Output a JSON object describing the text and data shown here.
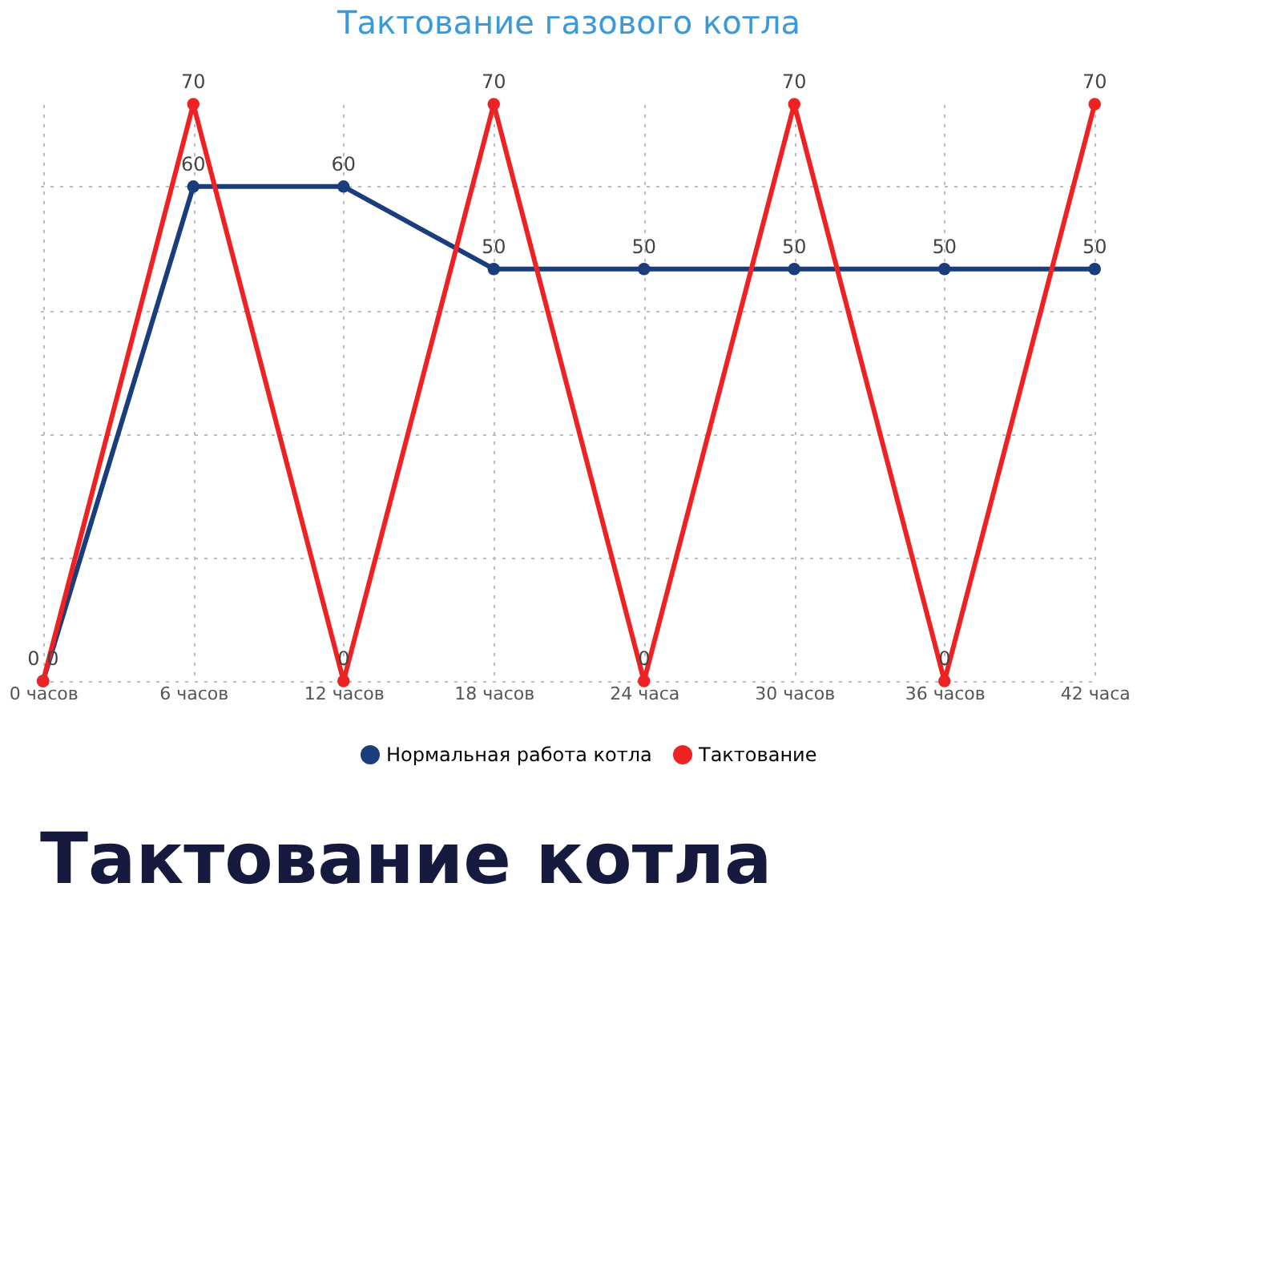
{
  "chart_data": {
    "type": "line",
    "title": "Тактование газового котла",
    "categories": [
      "0 часов",
      "6 часов",
      "12 часов",
      "18 часов",
      "24 часа",
      "30 часов",
      "36 часов",
      "42 часа"
    ],
    "series": [
      {
        "name": "Нормальная работа котла",
        "color": "#1a3d7c",
        "values": [
          0,
          60,
          60,
          50,
          50,
          50,
          50,
          50
        ]
      },
      {
        "name": "Тактование",
        "color": "#ee2222",
        "values": [
          0,
          70,
          0,
          70,
          0,
          70,
          0,
          70
        ]
      }
    ],
    "ylim": [
      0,
      70
    ],
    "yticks": [
      {
        "value": 0,
        "label": null
      },
      {
        "value": 15,
        "label": null
      },
      {
        "value": 30,
        "label": null
      },
      {
        "value": 45,
        "label": null
      },
      {
        "value": 60,
        "label": null
      }
    ],
    "tick_labels": "x",
    "grid": true,
    "legend": "bottom",
    "marker": "circle",
    "line_style": "solid",
    "data_labels": true,
    "annotations": [
      "Тактование котла"
    ]
  }
}
